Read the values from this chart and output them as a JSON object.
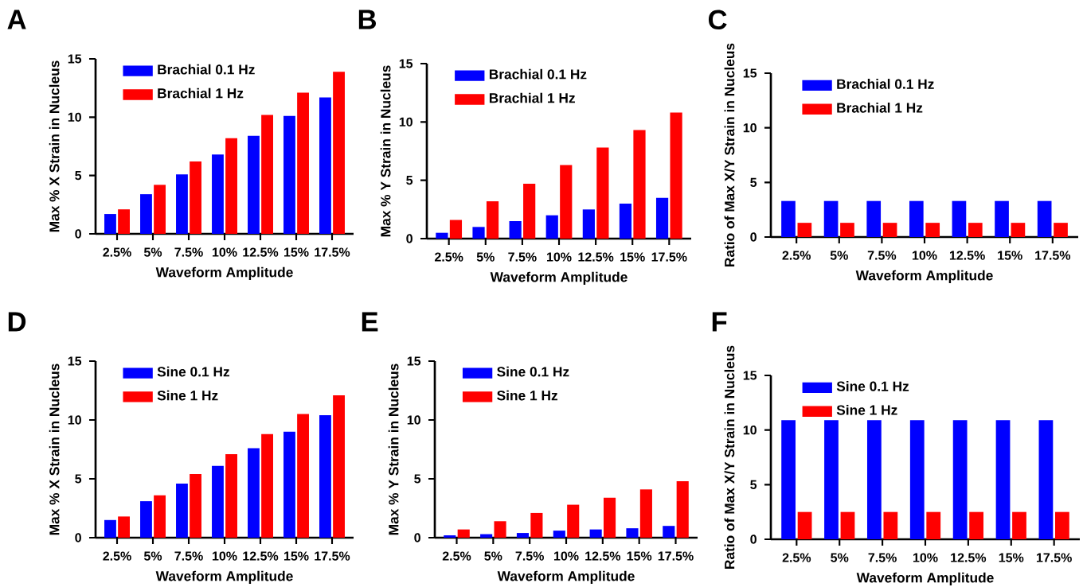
{
  "chart_data": [
    {
      "type": "bar",
      "title": "A",
      "xlabel": "Waveform Amplitude",
      "ylabel": "Max % X Strain in Nucleus",
      "categories": [
        "2.5%",
        "5%",
        "7.5%",
        "10%",
        "12.5%",
        "15%",
        "17.5%"
      ],
      "ylim": [
        0,
        15
      ],
      "yticks": [
        0,
        5,
        10,
        15
      ],
      "legend": "top left",
      "series": [
        {
          "name": "Brachial 0.1 Hz",
          "color": "#0000ff",
          "values": [
            1.7,
            3.4,
            5.1,
            6.8,
            8.4,
            10.1,
            11.7
          ]
        },
        {
          "name": "Brachial 1 Hz",
          "color": "#ff0000",
          "values": [
            2.1,
            4.2,
            6.2,
            8.2,
            10.2,
            12.1,
            13.9
          ]
        }
      ]
    },
    {
      "type": "bar",
      "title": "B",
      "xlabel": "Waveform Amplitude",
      "ylabel": "Max % Y Strain in Nucleus",
      "categories": [
        "2.5%",
        "5%",
        "7.5%",
        "10%",
        "12.5%",
        "15%",
        "17.5%"
      ],
      "ylim": [
        0,
        15
      ],
      "yticks": [
        0,
        5,
        10,
        15
      ],
      "legend": "top left",
      "series": [
        {
          "name": "Brachial 0.1 Hz",
          "color": "#0000ff",
          "values": [
            0.5,
            1.0,
            1.5,
            2.0,
            2.5,
            3.0,
            3.5
          ]
        },
        {
          "name": "Brachial 1 Hz",
          "color": "#ff0000",
          "values": [
            1.6,
            3.2,
            4.7,
            6.3,
            7.8,
            9.3,
            10.8
          ]
        }
      ]
    },
    {
      "type": "bar",
      "title": "C",
      "xlabel": "Waveform Amplitude",
      "ylabel": "Ratio of Max X/Y Strain in Nucleus",
      "categories": [
        "2.5%",
        "5%",
        "7.5%",
        "10%",
        "12.5%",
        "15%",
        "17.5%"
      ],
      "ylim": [
        0,
        15
      ],
      "yticks": [
        0,
        5,
        10,
        15
      ],
      "legend": "top left",
      "series": [
        {
          "name": "Brachial 0.1 Hz",
          "color": "#0000ff",
          "values": [
            3.3,
            3.3,
            3.3,
            3.3,
            3.3,
            3.3,
            3.3
          ]
        },
        {
          "name": "Brachial 1 Hz",
          "color": "#ff0000",
          "values": [
            1.3,
            1.3,
            1.3,
            1.3,
            1.3,
            1.3,
            1.3
          ]
        }
      ]
    },
    {
      "type": "bar",
      "title": "D",
      "xlabel": "Waveform Amplitude",
      "ylabel": "Max % X Strain in Nucleus",
      "categories": [
        "2.5%",
        "5%",
        "7.5%",
        "10%",
        "12.5%",
        "15%",
        "17.5%"
      ],
      "ylim": [
        0,
        15
      ],
      "yticks": [
        0,
        5,
        10,
        15
      ],
      "legend": "top left",
      "series": [
        {
          "name": "Sine 0.1 Hz",
          "color": "#0000ff",
          "values": [
            1.5,
            3.1,
            4.6,
            6.1,
            7.6,
            9.0,
            10.4
          ]
        },
        {
          "name": "Sine 1 Hz",
          "color": "#ff0000",
          "values": [
            1.8,
            3.6,
            5.4,
            7.1,
            8.8,
            10.5,
            12.1
          ]
        }
      ]
    },
    {
      "type": "bar",
      "title": "E",
      "xlabel": "Waveform Amplitude",
      "ylabel": "Max % Y Strain in Nucleus",
      "categories": [
        "2.5%",
        "5%",
        "7.5%",
        "10%",
        "12.5%",
        "15%",
        "17.5%"
      ],
      "ylim": [
        0,
        15
      ],
      "yticks": [
        0,
        5,
        10,
        15
      ],
      "legend": "top left",
      "series": [
        {
          "name": "Sine 0.1 Hz",
          "color": "#0000ff",
          "values": [
            0.2,
            0.3,
            0.4,
            0.6,
            0.7,
            0.8,
            1.0
          ]
        },
        {
          "name": "Sine 1 Hz",
          "color": "#ff0000",
          "values": [
            0.7,
            1.4,
            2.1,
            2.8,
            3.4,
            4.1,
            4.8
          ]
        }
      ]
    },
    {
      "type": "bar",
      "title": "F",
      "xlabel": "Waveform Amplitude",
      "ylabel": "Ratio of Max X/Y Strain in Nucleus",
      "categories": [
        "2.5%",
        "5%",
        "7.5%",
        "10%",
        "12.5%",
        "15%",
        "17.5%"
      ],
      "ylim": [
        0,
        15
      ],
      "yticks": [
        0,
        5,
        10,
        15
      ],
      "legend": "top left",
      "series": [
        {
          "name": "Sine 0.1 Hz",
          "color": "#0000ff",
          "values": [
            10.9,
            10.9,
            10.9,
            10.9,
            10.9,
            10.9,
            10.9
          ]
        },
        {
          "name": "Sine 1 Hz",
          "color": "#ff0000",
          "values": [
            2.5,
            2.5,
            2.5,
            2.5,
            2.5,
            2.5,
            2.5
          ]
        }
      ]
    }
  ]
}
